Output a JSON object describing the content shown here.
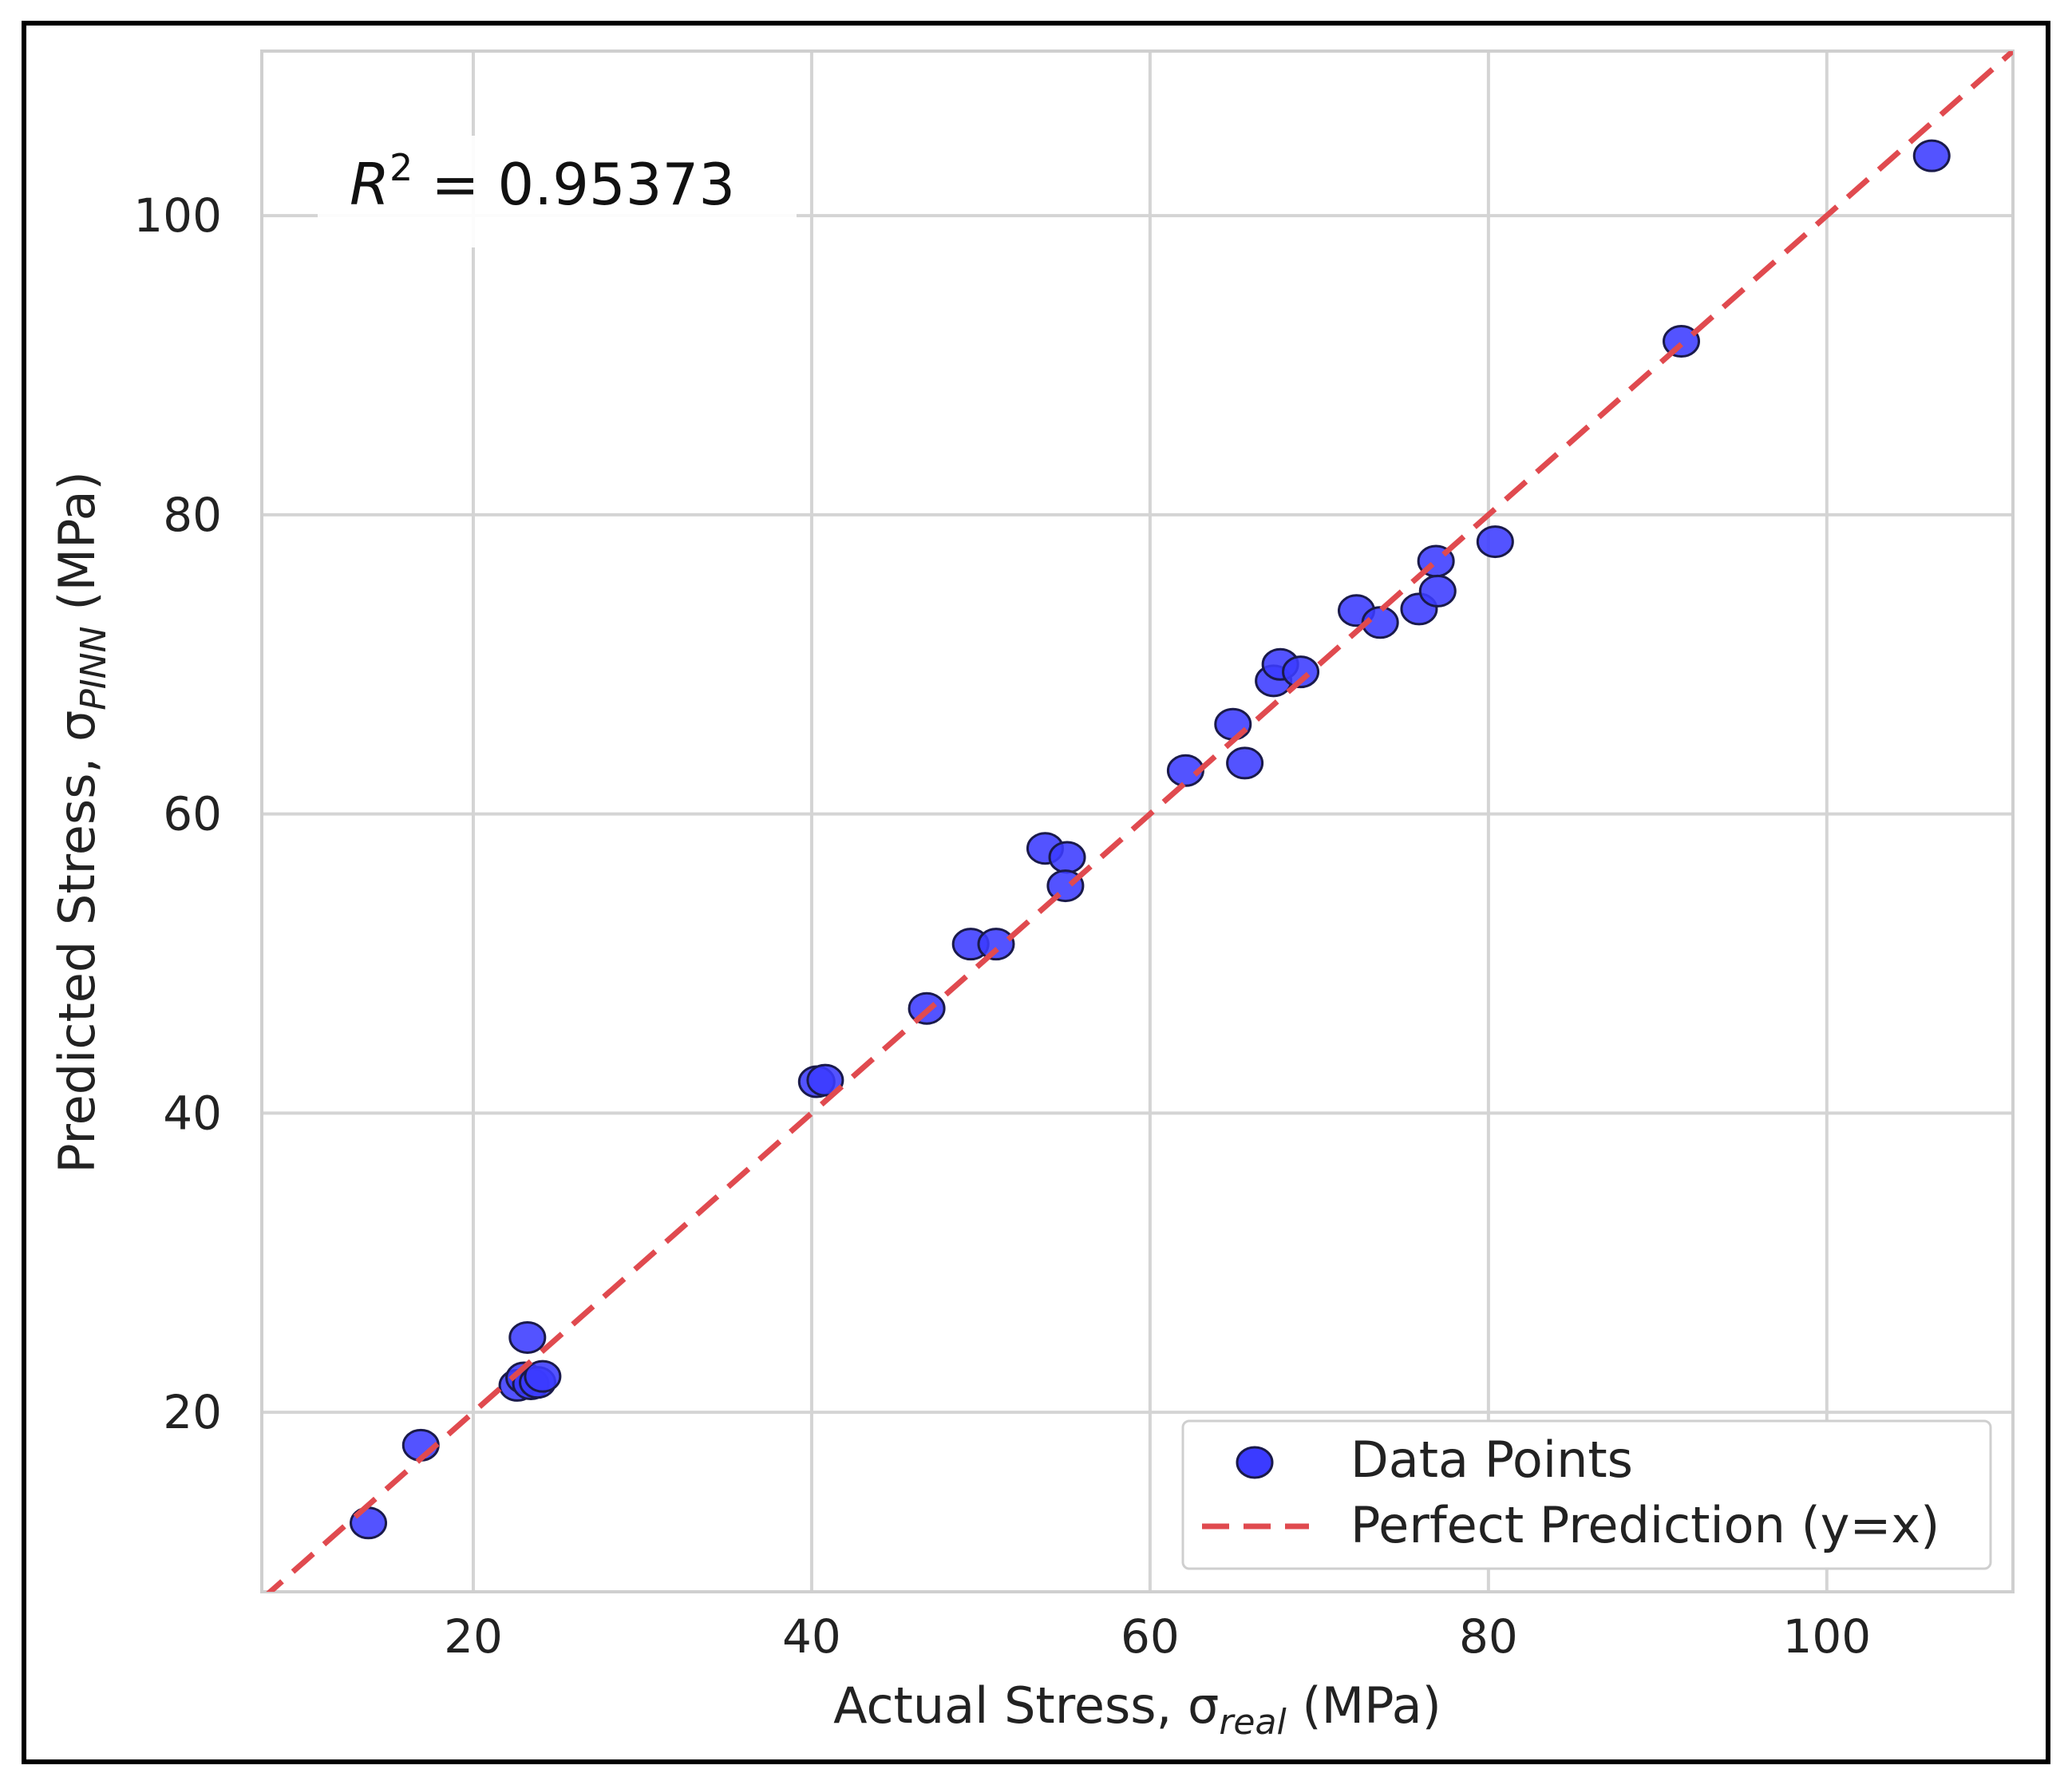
{
  "chart_data": {
    "type": "scatter",
    "xlabel": {
      "main": "Actual Stress, σ",
      "sub": "real",
      "unit": " (MPa)"
    },
    "ylabel": {
      "main": "Predicted Stress, σ",
      "sub": "PINN",
      "unit": " (MPa)"
    },
    "xlim": [
      7.5,
      111
    ],
    "ylim": [
      8,
      111
    ],
    "xticks": [
      20,
      40,
      60,
      80,
      100
    ],
    "yticks": [
      20,
      40,
      60,
      80,
      100
    ],
    "grid": true,
    "legend_position": "bottom-right",
    "annotation": {
      "r2_prefix": "R",
      "r2_sup": "2",
      "r2_rest": " = 0.95373"
    },
    "series": [
      {
        "name": "Data Points",
        "type": "scatter",
        "color": "#3b3bff",
        "edge_color": "#1a1a4a",
        "points": [
          {
            "x": 13.8,
            "y": 12.6
          },
          {
            "x": 16.9,
            "y": 17.8
          },
          {
            "x": 22.6,
            "y": 21.8
          },
          {
            "x": 23.0,
            "y": 22.3
          },
          {
            "x": 23.4,
            "y": 21.9
          },
          {
            "x": 23.8,
            "y": 22.0
          },
          {
            "x": 24.1,
            "y": 22.4
          },
          {
            "x": 23.2,
            "y": 25.0
          },
          {
            "x": 40.3,
            "y": 42.1
          },
          {
            "x": 40.8,
            "y": 42.2
          },
          {
            "x": 46.8,
            "y": 47.0
          },
          {
            "x": 49.4,
            "y": 51.3
          },
          {
            "x": 50.9,
            "y": 51.3
          },
          {
            "x": 53.8,
            "y": 57.7
          },
          {
            "x": 55.1,
            "y": 57.1
          },
          {
            "x": 55.0,
            "y": 55.2
          },
          {
            "x": 62.1,
            "y": 62.9
          },
          {
            "x": 64.9,
            "y": 66.0
          },
          {
            "x": 65.6,
            "y": 63.4
          },
          {
            "x": 67.3,
            "y": 68.9
          },
          {
            "x": 67.7,
            "y": 70.0
          },
          {
            "x": 68.9,
            "y": 69.5
          },
          {
            "x": 72.2,
            "y": 73.6
          },
          {
            "x": 73.6,
            "y": 72.8
          },
          {
            "x": 75.9,
            "y": 73.7
          },
          {
            "x": 76.9,
            "y": 76.9
          },
          {
            "x": 77.0,
            "y": 74.9
          },
          {
            "x": 80.4,
            "y": 78.2
          },
          {
            "x": 91.4,
            "y": 91.6
          },
          {
            "x": 106.2,
            "y": 104.0
          }
        ]
      },
      {
        "name": "Perfect Prediction (y=x)",
        "type": "line",
        "style": "dashed",
        "color": "#e04a4f",
        "x": [
          7.5,
          111
        ],
        "y": [
          7.5,
          111
        ]
      }
    ]
  }
}
